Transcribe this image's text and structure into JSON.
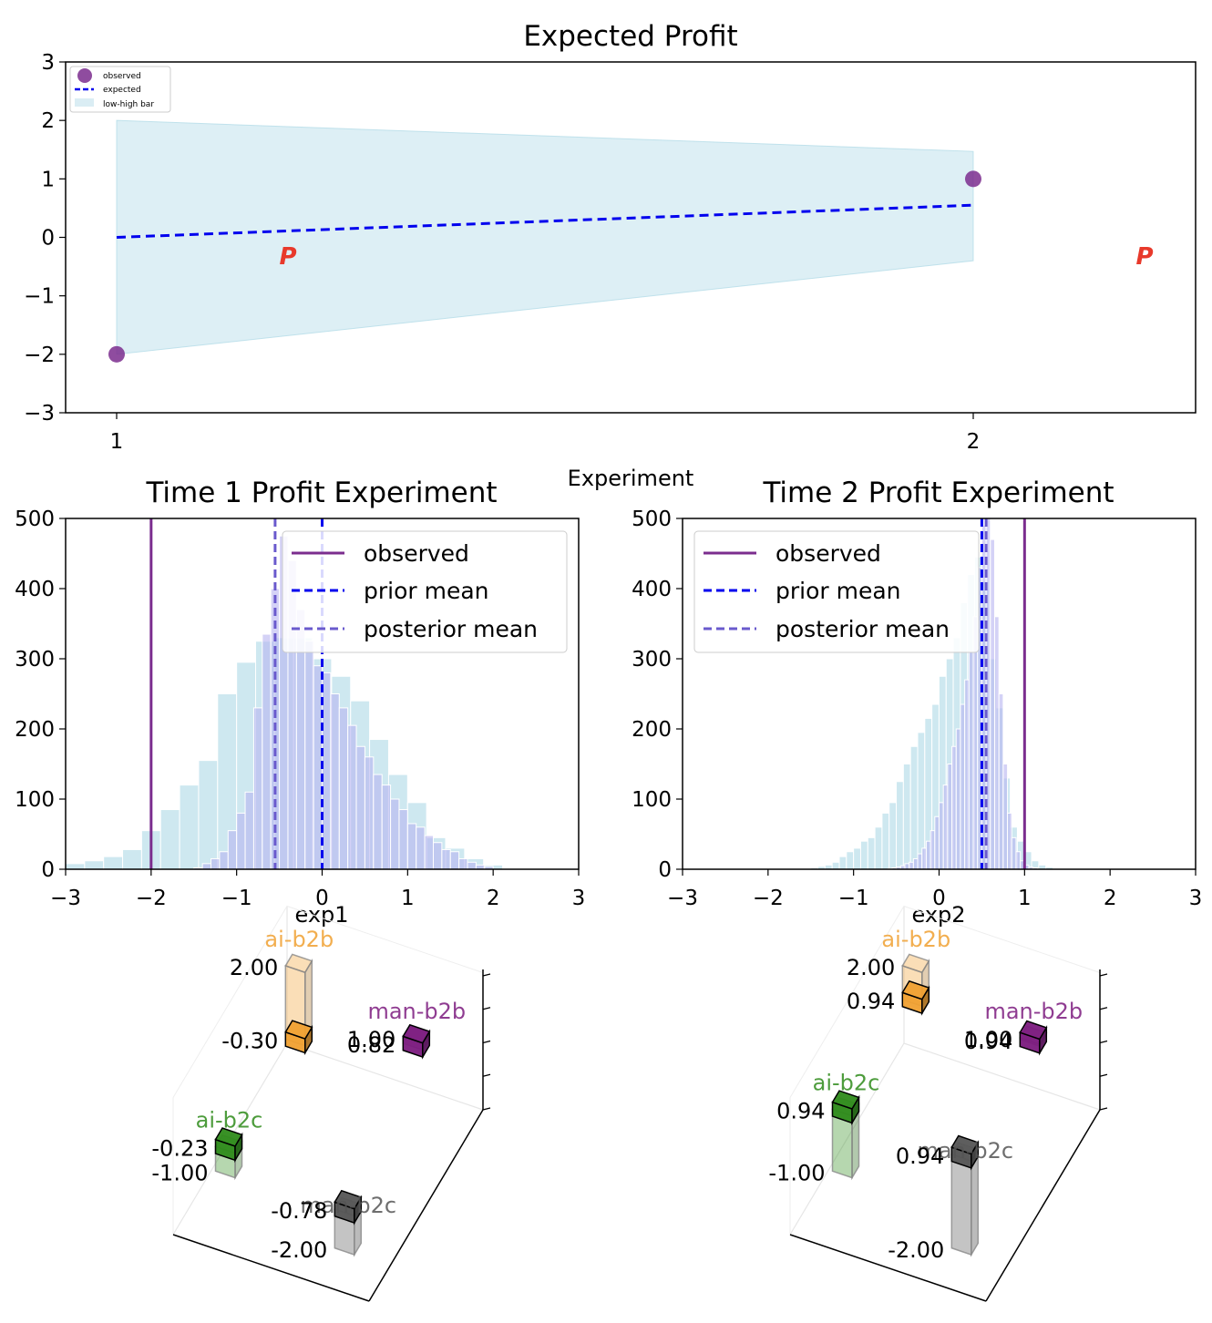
{
  "chart_data": [
    {
      "type": "line",
      "title": "Expected Profit",
      "xlabel": "Experiment",
      "ylabel": "",
      "x": [
        1,
        2
      ],
      "xticks": [
        "1",
        "2"
      ],
      "yticks": [
        "3",
        "2",
        "1",
        "0",
        "−1",
        "−2",
        "−3"
      ],
      "ylim": [
        -3,
        3
      ],
      "series": [
        {
          "name": "observed",
          "kind": "scatter",
          "color": "#7b2d8e",
          "values": [
            -2,
            1
          ]
        },
        {
          "name": "expected",
          "kind": "line-dashed",
          "color": "#0000ee",
          "values": [
            0,
            0.55
          ]
        },
        {
          "name": "low-high bar",
          "kind": "band",
          "color": "#add8e6",
          "low": [
            -2,
            -0.4
          ],
          "high": [
            2,
            1.47
          ]
        }
      ],
      "annotations": [
        {
          "text": "P",
          "x": 1.2,
          "y": -0.3,
          "color": "#e8392b"
        },
        {
          "text": "P",
          "x": 2.2,
          "y": -0.3,
          "color": "#e8392b"
        }
      ],
      "legend": "top-left"
    },
    {
      "type": "histogram",
      "title": "Time 1 Profit Experiment",
      "xlabel": "exp1",
      "xlim": [
        -3,
        3
      ],
      "ylim": [
        0,
        500
      ],
      "xticks": [
        "−3",
        "−2",
        "−1",
        "0",
        "1",
        "2",
        "3"
      ],
      "yticks": [
        "500",
        "400",
        "300",
        "200",
        "100",
        "0"
      ],
      "prior_hist": {
        "bin_width": 0.2222,
        "start": -3.0,
        "counts": [
          8,
          12,
          18,
          28,
          55,
          85,
          120,
          155,
          250,
          295,
          325,
          330,
          330,
          300,
          275,
          240,
          185,
          135,
          95,
          45,
          30,
          15,
          6
        ]
      },
      "posterior_hist": {
        "bin_width": 0.1,
        "start": -1.5,
        "counts": [
          2,
          8,
          15,
          25,
          55,
          80,
          110,
          230,
          335,
          400,
          475,
          440,
          370,
          325,
          290,
          280,
          250,
          230,
          205,
          175,
          160,
          135,
          120,
          100,
          85,
          65,
          60,
          48,
          38,
          28,
          25,
          15,
          10,
          6,
          4
        ]
      },
      "vlines": [
        {
          "name": "observed",
          "x": -2.0,
          "color": "#7b2d8e",
          "style": "solid"
        },
        {
          "name": "prior mean",
          "x": 0.0,
          "color": "#0000ee",
          "style": "dashed"
        },
        {
          "name": "posterior mean",
          "x": -0.55,
          "color": "#6a5acd",
          "style": "dashed"
        }
      ],
      "legend": "top-right"
    },
    {
      "type": "histogram",
      "title": "Time 2 Profit Experiment",
      "xlabel": "exp2",
      "xlim": [
        -3,
        3
      ],
      "ylim": [
        0,
        500
      ],
      "xticks": [
        "−3",
        "−2",
        "−1",
        "0",
        "1",
        "2",
        "3"
      ],
      "yticks": [
        "500",
        "400",
        "300",
        "200",
        "100",
        "0"
      ],
      "prior_hist": {
        "bin_width": 0.0833,
        "start": -1.5,
        "counts": [
          2,
          4,
          6,
          10,
          18,
          25,
          30,
          40,
          45,
          60,
          80,
          95,
          125,
          150,
          175,
          195,
          215,
          235,
          275,
          300,
          330,
          380,
          420,
          445,
          410,
          300,
          230,
          130,
          60,
          40,
          25,
          12,
          6,
          3
        ]
      },
      "posterior_hist": {
        "bin_width": 0.05,
        "start": -0.6,
        "counts": [
          1,
          2,
          3,
          5,
          8,
          10,
          15,
          22,
          30,
          40,
          55,
          75,
          95,
          120,
          150,
          175,
          200,
          235,
          270,
          310,
          360,
          430,
          490,
          500,
          470,
          360,
          250,
          150,
          80,
          45,
          25,
          12,
          6,
          3,
          2
        ]
      },
      "vlines": [
        {
          "name": "observed",
          "x": 1.0,
          "color": "#7b2d8e",
          "style": "solid"
        },
        {
          "name": "prior mean",
          "x": 0.5,
          "color": "#0000ee",
          "style": "dashed"
        },
        {
          "name": "posterior mean",
          "x": 0.55,
          "color": "#6a5acd",
          "style": "dashed"
        }
      ],
      "legend": "top-left"
    },
    {
      "type": "bar3d",
      "bars": [
        {
          "name": "ai-b2b",
          "color": "#f0a030",
          "prior": 2.0,
          "posterior": -0.3,
          "prior_label": "2.00",
          "posterior_label": "-0.30"
        },
        {
          "name": "man-b2b",
          "color": "#7b1a7e",
          "prior": 1.0,
          "posterior": 0.82,
          "prior_label": "1.00",
          "posterior_label": "0.82"
        },
        {
          "name": "ai-b2c",
          "color": "#2e8b1a",
          "prior": -1.0,
          "posterior": -0.23,
          "prior_label": "-1.00",
          "posterior_label": "-0.23"
        },
        {
          "name": "man-b2c",
          "color": "#555555",
          "prior": -2.0,
          "posterior": -0.78,
          "prior_label": "-2.00",
          "posterior_label": "-0.78"
        }
      ]
    },
    {
      "type": "bar3d",
      "bars": [
        {
          "name": "ai-b2b",
          "color": "#f0a030",
          "prior": 2.0,
          "posterior": 0.94,
          "prior_label": "2.00",
          "posterior_label": "0.94"
        },
        {
          "name": "man-b2b",
          "color": "#7b1a7e",
          "prior": 1.0,
          "posterior": 0.94,
          "prior_label": "1.00",
          "posterior_label": "0.94"
        },
        {
          "name": "ai-b2c",
          "color": "#2e8b1a",
          "prior": -1.0,
          "posterior": 0.94,
          "prior_label": "-1.00",
          "posterior_label": "0.94"
        },
        {
          "name": "man-b2c",
          "color": "#555555",
          "prior": -2.0,
          "posterior": 0.94,
          "prior_label": "-2.00",
          "posterior_label": "0.94"
        }
      ]
    }
  ]
}
